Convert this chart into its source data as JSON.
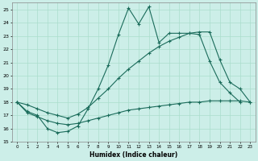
{
  "xlabel": "Humidex (Indice chaleur)",
  "bg_color": "#cceee8",
  "grid_color": "#aaddcc",
  "line_color": "#1a6b5a",
  "xlim": [
    -0.5,
    23.5
  ],
  "ylim": [
    15,
    25.5
  ],
  "xticks": [
    0,
    1,
    2,
    3,
    4,
    5,
    6,
    7,
    8,
    9,
    10,
    11,
    12,
    13,
    14,
    15,
    16,
    17,
    18,
    19,
    20,
    21,
    22,
    23
  ],
  "yticks": [
    15,
    16,
    17,
    18,
    19,
    20,
    21,
    22,
    23,
    24,
    25
  ],
  "line1_x": [
    0,
    1,
    2,
    3,
    4,
    5,
    6,
    7,
    8,
    9,
    10,
    11,
    12,
    13,
    14,
    15,
    16,
    17,
    18,
    19,
    20,
    21,
    22
  ],
  "line1_y": [
    18,
    17.3,
    17,
    16,
    15.7,
    15.8,
    16.2,
    17.5,
    19.0,
    20.8,
    23.1,
    25.1,
    23.9,
    25.2,
    22.5,
    23.2,
    23.2,
    23.2,
    23.1,
    21.1,
    19.5,
    18.7,
    18.0
  ],
  "line2_x": [
    0,
    1,
    2,
    3,
    4,
    5,
    6,
    7,
    8,
    9,
    10,
    11,
    12,
    13,
    14,
    15,
    16,
    17,
    18,
    19,
    20,
    21,
    22,
    23
  ],
  "line2_y": [
    18,
    17.8,
    17.5,
    17.2,
    17.0,
    16.8,
    17.1,
    17.6,
    18.3,
    19.0,
    19.8,
    20.5,
    21.1,
    21.7,
    22.2,
    22.6,
    22.9,
    23.2,
    23.3,
    23.3,
    21.2,
    19.5,
    19.0,
    18.0
  ],
  "line3_x": [
    0,
    1,
    2,
    3,
    4,
    5,
    6,
    7,
    8,
    9,
    10,
    11,
    12,
    13,
    14,
    15,
    16,
    17,
    18,
    19,
    20,
    21,
    22,
    23
  ],
  "line3_y": [
    18,
    17.2,
    16.9,
    16.6,
    16.4,
    16.3,
    16.4,
    16.6,
    16.8,
    17.0,
    17.2,
    17.4,
    17.5,
    17.6,
    17.7,
    17.8,
    17.9,
    18.0,
    18.0,
    18.1,
    18.1,
    18.1,
    18.1,
    18.0
  ]
}
